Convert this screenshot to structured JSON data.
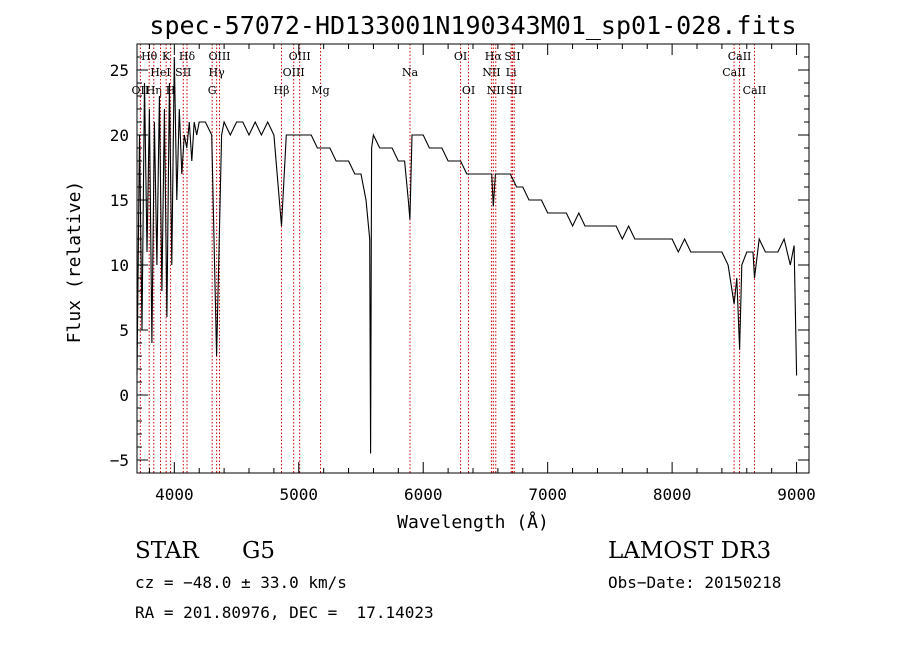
{
  "chart_data": {
    "type": "line",
    "title": "spec-57072-HD133001N190343M01_sp01-028.fits",
    "xlabel": "Wavelength (Å)",
    "ylabel": "Flux (relative)",
    "xlim": [
      3700,
      9100
    ],
    "ylim": [
      -6,
      27
    ],
    "x_ticks": [
      4000,
      5000,
      6000,
      7000,
      8000,
      9000
    ],
    "y_ticks": [
      -5,
      0,
      5,
      10,
      15,
      20,
      25
    ],
    "series": [
      {
        "name": "flux",
        "x": [
          3700,
          3720,
          3740,
          3760,
          3780,
          3800,
          3820,
          3840,
          3860,
          3880,
          3900,
          3920,
          3940,
          3960,
          3980,
          4000,
          4020,
          4040,
          4060,
          4080,
          4100,
          4120,
          4140,
          4160,
          4180,
          4200,
          4250,
          4300,
          4340,
          4380,
          4400,
          4450,
          4500,
          4550,
          4600,
          4650,
          4700,
          4750,
          4800,
          4861,
          4900,
          4950,
          5000,
          5050,
          5100,
          5150,
          5200,
          5250,
          5300,
          5350,
          5400,
          5450,
          5500,
          5540,
          5570,
          5577,
          5585,
          5600,
          5650,
          5700,
          5750,
          5800,
          5850,
          5880,
          5893,
          5910,
          5950,
          6000,
          6050,
          6100,
          6150,
          6200,
          6250,
          6300,
          6350,
          6400,
          6450,
          6500,
          6550,
          6563,
          6580,
          6600,
          6650,
          6700,
          6750,
          6800,
          6850,
          6900,
          6950,
          7000,
          7050,
          7100,
          7150,
          7200,
          7250,
          7300,
          7350,
          7400,
          7450,
          7500,
          7550,
          7600,
          7650,
          7700,
          7750,
          7800,
          7850,
          7900,
          7950,
          8000,
          8050,
          8100,
          8150,
          8200,
          8250,
          8300,
          8350,
          8400,
          8450,
          8498,
          8520,
          8542,
          8560,
          8600,
          8650,
          8662,
          8700,
          8750,
          8800,
          8850,
          8900,
          8950,
          8980,
          9000
        ],
        "y": [
          1.5,
          20,
          5,
          24,
          11,
          22,
          4,
          21,
          10,
          23,
          8,
          22,
          6,
          24,
          10,
          26,
          15,
          22,
          17,
          20,
          19,
          21,
          18,
          21,
          20,
          21,
          21,
          20,
          3,
          20,
          21,
          20,
          21,
          21,
          20,
          21,
          20,
          21,
          20,
          13,
          20,
          20,
          20,
          20,
          20,
          19,
          19,
          19,
          18,
          18,
          18,
          17,
          17,
          15,
          12,
          -4.5,
          19,
          20,
          19,
          19,
          19,
          18,
          18,
          15,
          13.5,
          20,
          20,
          20,
          19,
          19,
          19,
          18,
          18,
          18,
          17,
          17,
          17,
          17,
          17,
          14.5,
          17,
          17,
          17,
          17,
          16,
          16,
          15,
          15,
          15,
          14,
          14,
          14,
          14,
          13,
          14,
          13,
          13,
          13,
          13,
          13,
          13,
          12,
          13,
          12,
          12,
          12,
          12,
          12,
          12,
          12,
          11,
          12,
          11,
          11,
          11,
          11,
          11,
          11,
          10,
          7,
          9,
          3.5,
          10,
          11,
          11,
          9,
          12,
          11,
          11,
          11,
          12,
          10,
          11.5,
          1.5
        ]
      }
    ],
    "lines": [
      {
        "wave": 3727,
        "label": "OII",
        "row": 3
      },
      {
        "wave": 3798,
        "label": "Hθ",
        "row": 1
      },
      {
        "wave": 3835,
        "label": "Hη",
        "row": 3
      },
      {
        "wave": 3889,
        "label": "HeI",
        "row": 2
      },
      {
        "wave": 3934,
        "label": "K",
        "row": 1
      },
      {
        "wave": 3970,
        "label": "H",
        "row": 3
      },
      {
        "wave": 4072,
        "label": "SII",
        "row": 2
      },
      {
        "wave": 4102,
        "label": "Hδ",
        "row": 1
      },
      {
        "wave": 4304,
        "label": "G",
        "row": 3
      },
      {
        "wave": 4340,
        "label": "Hγ",
        "row": 2
      },
      {
        "wave": 4363,
        "label": "OIII",
        "row": 1
      },
      {
        "wave": 4861,
        "label": "Hβ",
        "row": 3
      },
      {
        "wave": 4959,
        "label": "OIII",
        "row": 2
      },
      {
        "wave": 5007,
        "label": "OIII",
        "row": 1
      },
      {
        "wave": 5175,
        "label": "Mg",
        "row": 3
      },
      {
        "wave": 5894,
        "label": "Na",
        "row": 2
      },
      {
        "wave": 6300,
        "label": "OI",
        "row": 1
      },
      {
        "wave": 6364,
        "label": "OI",
        "row": 3
      },
      {
        "wave": 6548,
        "label": "NII",
        "row": 2
      },
      {
        "wave": 6563,
        "label": "Hα",
        "row": 1
      },
      {
        "wave": 6583,
        "label": "NII",
        "row": 3
      },
      {
        "wave": 6707,
        "label": "Li",
        "row": 2
      },
      {
        "wave": 6717,
        "label": "SII",
        "row": 1
      },
      {
        "wave": 6731,
        "label": "SII",
        "row": 3
      },
      {
        "wave": 8498,
        "label": "CaII",
        "row": 2
      },
      {
        "wave": 8542,
        "label": "CaII",
        "row": 1
      },
      {
        "wave": 8662,
        "label": "CaII",
        "row": 3
      }
    ]
  },
  "info": {
    "class": "STAR",
    "subclass": "G5",
    "survey": "LAMOST DR3",
    "cz": "cz = −48.0 ± 33.0 km/s",
    "obs_date": "Obs−Date: 20150218",
    "coords": "RA = 201.80976, DEC =  17.14023"
  },
  "colors": {
    "axes": "#000000",
    "spectrum": "#000000",
    "line_markers": "#cc0000"
  }
}
